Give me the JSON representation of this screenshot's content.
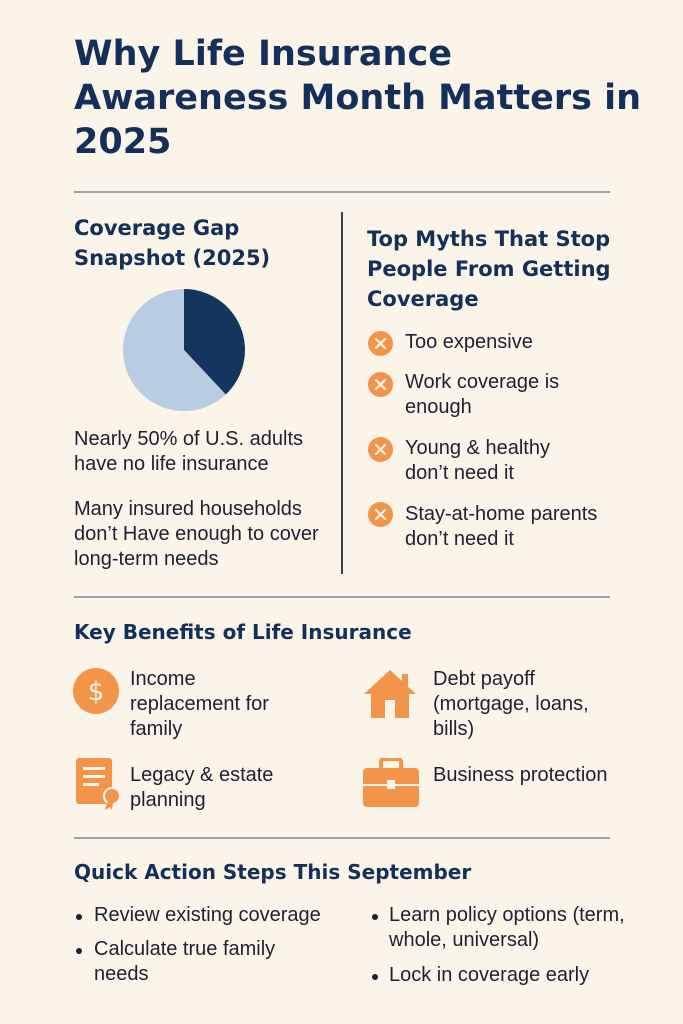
{
  "title": "Why Life Insurance Awareness Month Matters in 2025",
  "coverage": {
    "heading": "Coverage Gap Snapshot (2025)",
    "stat1": "Nearly 50% of U.S. adults have no life insurance",
    "stat2": "Many insured households don’t Have enough to cover long-term needs",
    "pie": {
      "slices": [
        {
          "value": 38,
          "color": "#14365e"
        },
        {
          "value": 62,
          "color": "#b9cde2"
        }
      ]
    }
  },
  "myths": {
    "heading": "Top Myths That Stop People From Getting Coverage",
    "items": [
      {
        "icon": "x-circle-icon",
        "text": "Too expensive"
      },
      {
        "icon": "x-circle-icon",
        "text": "Work coverage is enough"
      },
      {
        "icon": "x-circle-icon",
        "text": "Young & healthy don’t need it"
      },
      {
        "icon": "x-circle-icon",
        "text": "Stay-at-home parents don’t need it"
      }
    ]
  },
  "benefits": {
    "heading": "Key Benefits of Life Insurance",
    "items": [
      {
        "icon": "dollar-coin-icon",
        "text": "Income replacement for family"
      },
      {
        "icon": "house-icon",
        "text": "Debt payoff (mortgage, loans, bills)"
      },
      {
        "icon": "certificate-icon",
        "text": "Legacy & estate planning"
      },
      {
        "icon": "briefcase-icon",
        "text": "Business protection"
      }
    ]
  },
  "steps": {
    "heading": "Quick Action Steps This September",
    "items": [
      "Review existing coverage",
      "Calculate true family needs",
      "Learn policy options (term, whole, universal)",
      "Lock in coverage early"
    ]
  },
  "colors": {
    "navy": "#14305a",
    "accent": "#f2944a",
    "background": "#fbf4e8"
  }
}
